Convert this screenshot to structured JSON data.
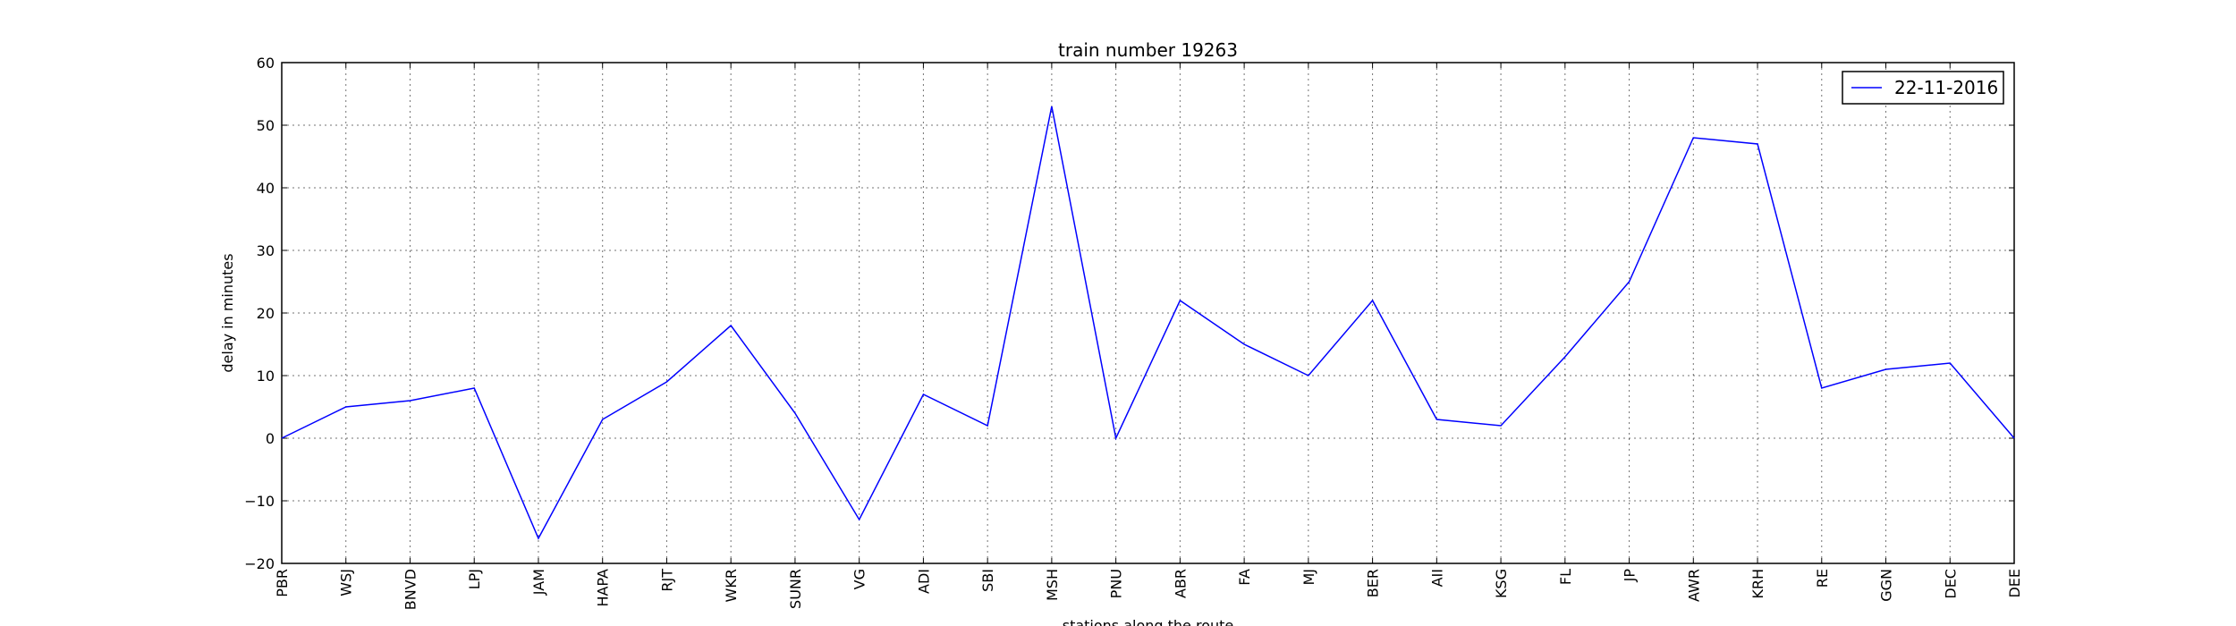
{
  "chart_data": {
    "type": "line",
    "title": "train number 19263",
    "xlabel": "stations along the route",
    "ylabel": "delay in minutes",
    "categories": [
      "PBR",
      "WSJ",
      "BNVD",
      "LPJ",
      "JAM",
      "HAPA",
      "RJT",
      "WKR",
      "SUNR",
      "VG",
      "ADI",
      "SBI",
      "MSH",
      "PNU",
      "ABR",
      "FA",
      "MJ",
      "BER",
      "AII",
      "KSG",
      "FL",
      "JP",
      "AWR",
      "KRH",
      "RE",
      "GGN",
      "DEC",
      "DEE"
    ],
    "series": [
      {
        "name": "22-11-2016",
        "color": "#0000ff",
        "values": [
          0,
          5,
          6,
          8,
          -16,
          3,
          9,
          18,
          4,
          -13,
          7,
          2,
          53,
          0,
          22,
          15,
          10,
          22,
          3,
          2,
          13,
          25,
          48,
          47,
          8,
          11,
          12,
          0
        ]
      }
    ],
    "ylim": [
      -20,
      60
    ],
    "yticks": [
      -20,
      -10,
      0,
      10,
      20,
      30,
      40,
      50,
      60
    ],
    "ytick_labels": [
      "−20",
      "−10",
      "0",
      "10",
      "20",
      "30",
      "40",
      "50",
      "60"
    ],
    "grid": true,
    "legend_position": "top-right"
  }
}
